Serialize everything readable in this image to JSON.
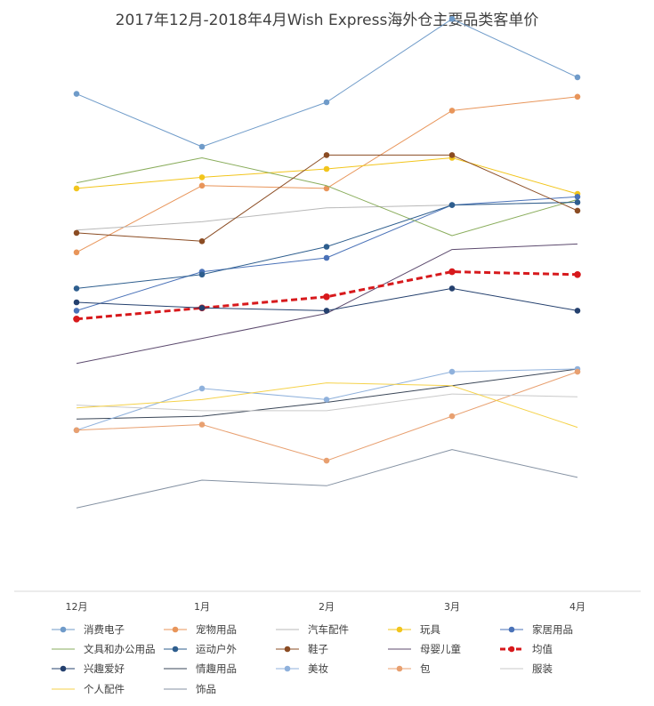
{
  "chart_data": {
    "type": "line",
    "title": "2017年12月-2018年4月Wish Express海外仓主要品类客单价",
    "categories": [
      "12月",
      "1月",
      "2月",
      "3月",
      "4月"
    ],
    "legend_position": "bottom",
    "grid": false,
    "ylim": [
      0,
      100
    ],
    "series": [
      {
        "name": "消费电子",
        "color": "#6f9bc9",
        "width": 1,
        "marker": true,
        "dashed": false,
        "values": [
          89.5,
          80.0,
          88.0,
          103.0,
          92.5
        ]
      },
      {
        "name": "宠物用品",
        "color": "#e8955a",
        "width": 1,
        "marker": true,
        "dashed": false,
        "values": [
          61.0,
          73.0,
          72.5,
          86.5,
          89.0
        ]
      },
      {
        "name": "汽车配件",
        "color": "#b8b8b8",
        "width": 1,
        "marker": false,
        "dashed": false,
        "values": [
          65.0,
          66.5,
          69.0,
          69.5,
          70.0
        ]
      },
      {
        "name": "玩具",
        "color": "#f2c51c",
        "width": 1,
        "marker": true,
        "dashed": false,
        "values": [
          72.5,
          74.5,
          76.0,
          78.0,
          71.5
        ]
      },
      {
        "name": "家居用品",
        "color": "#4a72b8",
        "width": 1,
        "marker": true,
        "dashed": false,
        "values": [
          50.5,
          57.5,
          60.0,
          69.5,
          71.0
        ]
      },
      {
        "name": "文具和办公用品",
        "color": "#8aad5c",
        "width": 1,
        "marker": false,
        "dashed": false,
        "values": [
          73.5,
          78.0,
          73.0,
          64.0,
          70.5
        ]
      },
      {
        "name": "运动户外",
        "color": "#2e5e8e",
        "width": 1,
        "marker": true,
        "dashed": false,
        "values": [
          54.5,
          57.0,
          62.0,
          69.5,
          70.0
        ]
      },
      {
        "name": "鞋子",
        "color": "#8b4c23",
        "width": 1,
        "marker": true,
        "dashed": false,
        "values": [
          64.5,
          63.0,
          78.5,
          78.5,
          68.5
        ]
      },
      {
        "name": "母婴儿童",
        "color": "#5c4a6e",
        "width": 1,
        "marker": false,
        "dashed": false,
        "values": [
          41.0,
          45.5,
          50.0,
          61.5,
          62.5
        ]
      },
      {
        "name": "均值",
        "color": "#d7191c",
        "width": 3,
        "marker": true,
        "dashed": true,
        "values": [
          49.0,
          51.0,
          53.0,
          57.5,
          57.0
        ]
      },
      {
        "name": "兴趣爱好",
        "color": "#24406e",
        "width": 1,
        "marker": true,
        "dashed": false,
        "values": [
          52.0,
          51.0,
          50.5,
          54.5,
          50.5
        ]
      },
      {
        "name": "情趣用品",
        "color": "#3a4657",
        "width": 1,
        "marker": false,
        "dashed": false,
        "values": [
          31.0,
          31.5,
          34.0,
          37.0,
          40.0
        ]
      },
      {
        "name": "美妆",
        "color": "#8fb1dc",
        "width": 1,
        "marker": true,
        "dashed": false,
        "values": [
          29.0,
          36.5,
          34.5,
          39.5,
          40.0
        ]
      },
      {
        "name": "包",
        "color": "#e8a070",
        "width": 1,
        "marker": true,
        "dashed": false,
        "values": [
          29.0,
          30.0,
          23.5,
          31.5,
          39.5
        ]
      },
      {
        "name": "服装",
        "color": "#c9c9c9",
        "width": 1,
        "marker": false,
        "dashed": false,
        "values": [
          33.5,
          32.5,
          32.5,
          35.5,
          35.0
        ]
      },
      {
        "name": "个人配件",
        "color": "#f5d24a",
        "width": 1,
        "marker": false,
        "dashed": false,
        "values": [
          33.0,
          34.5,
          37.5,
          37.0,
          29.5
        ]
      },
      {
        "name": "饰品",
        "color": "#8592a3",
        "width": 1,
        "marker": false,
        "dashed": false,
        "values": [
          15.0,
          20.0,
          19.0,
          25.5,
          20.5
        ]
      }
    ]
  }
}
